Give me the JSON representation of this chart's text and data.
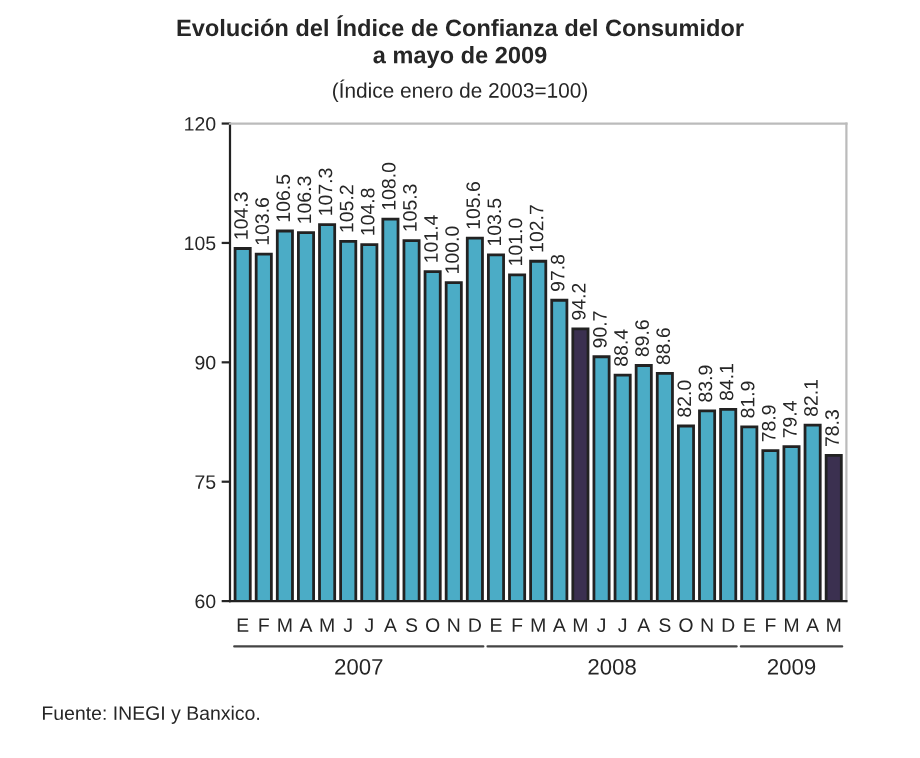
{
  "chart_data": {
    "type": "bar",
    "title": "Evolución del Índice de Confianza del Consumidor\na mayo de 2009",
    "subtitle": "(Índice enero de 2003=100)",
    "categories": [
      "E",
      "F",
      "M",
      "A",
      "M",
      "J",
      "J",
      "A",
      "S",
      "O",
      "N",
      "D",
      "E",
      "F",
      "M",
      "A",
      "M",
      "J",
      "J",
      "A",
      "S",
      "O",
      "N",
      "D",
      "E",
      "F",
      "M",
      "A",
      "M"
    ],
    "values": [
      104.3,
      103.6,
      106.5,
      106.3,
      107.3,
      105.2,
      104.8,
      108.0,
      105.3,
      101.4,
      100.0,
      105.6,
      103.5,
      101.0,
      102.7,
      97.8,
      94.2,
      90.7,
      88.4,
      89.6,
      88.6,
      82.0,
      83.9,
      84.1,
      81.9,
      78.9,
      79.4,
      82.1,
      78.3
    ],
    "colors": [
      "#4bacc6",
      "#4bacc6",
      "#4bacc6",
      "#4bacc6",
      "#4bacc6",
      "#4bacc6",
      "#4bacc6",
      "#4bacc6",
      "#4bacc6",
      "#4bacc6",
      "#4bacc6",
      "#4bacc6",
      "#4bacc6",
      "#4bacc6",
      "#4bacc6",
      "#4bacc6",
      "#3b3050",
      "#4bacc6",
      "#4bacc6",
      "#4bacc6",
      "#4bacc6",
      "#4bacc6",
      "#4bacc6",
      "#4bacc6",
      "#4bacc6",
      "#4bacc6",
      "#4bacc6",
      "#4bacc6",
      "#3b3050"
    ],
    "value_labels": [
      "104.3",
      "103.6",
      "106.5",
      "106.3",
      "107.3",
      "105.2",
      "104.8",
      "108.0",
      "105.3",
      "101.4",
      "100.0",
      "105.6",
      "103.5",
      "101.0",
      "102.7",
      "97.8",
      "94.2",
      "90.7",
      "88.4",
      "89.6",
      "88.6",
      "82.0",
      "83.9",
      "84.1",
      "81.9",
      "78.9",
      "79.4",
      "82.1",
      "78.3"
    ],
    "ylim": [
      60,
      120
    ],
    "yticks": [
      60,
      75,
      90,
      105,
      120
    ],
    "grid": false,
    "legend": false,
    "annotations": [
      "2007",
      "2008",
      "2009",
      "Fuente: INEGI y Banxico."
    ]
  }
}
